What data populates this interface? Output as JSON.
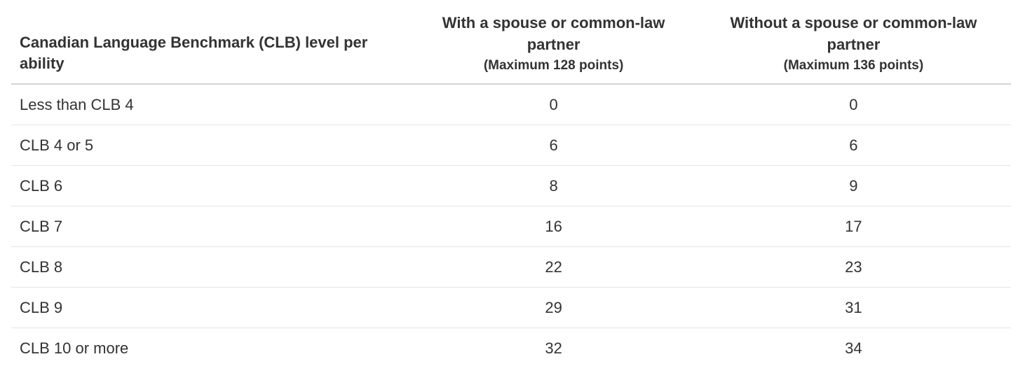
{
  "colors": {
    "background": "#ffffff",
    "text": "#333333",
    "header_rule": "#d4d4d4",
    "row_rule": "#e5e5e5"
  },
  "table": {
    "columns": [
      {
        "label": "Canadian Language Benchmark (CLB) level per ability",
        "sub": ""
      },
      {
        "label": "With a spouse or common-law partner",
        "sub": "(Maximum 128 points)"
      },
      {
        "label": "Without a spouse or common-law partner",
        "sub": "(Maximum 136 points)"
      }
    ],
    "rows": [
      {
        "label": "Less than CLB 4",
        "with_spouse": "0",
        "without_spouse": "0"
      },
      {
        "label": "CLB 4 or 5",
        "with_spouse": "6",
        "without_spouse": "6"
      },
      {
        "label": "CLB 6",
        "with_spouse": "8",
        "without_spouse": "9"
      },
      {
        "label": "CLB 7",
        "with_spouse": "16",
        "without_spouse": "17"
      },
      {
        "label": "CLB 8",
        "with_spouse": "22",
        "without_spouse": "23"
      },
      {
        "label": "CLB 9",
        "with_spouse": "29",
        "without_spouse": "31"
      },
      {
        "label": "CLB 10 or more",
        "with_spouse": "32",
        "without_spouse": "34"
      }
    ]
  }
}
